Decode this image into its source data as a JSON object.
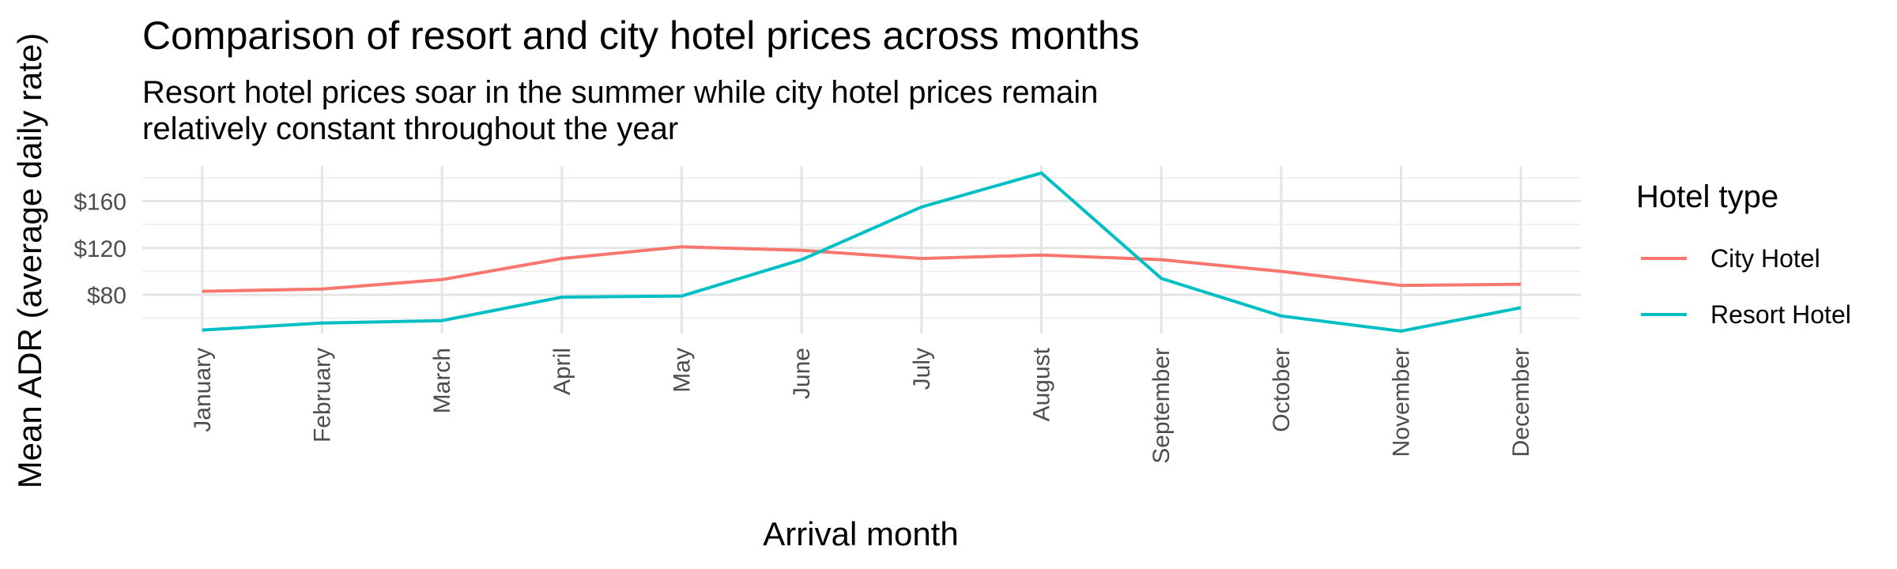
{
  "chart_data": {
    "type": "line",
    "title": "Comparison of resort and city hotel prices across months",
    "subtitle_lines": [
      "Resort hotel prices soar in the summer while city hotel prices remain",
      "relatively constant throughout the year"
    ],
    "xlabel": "Arrival month",
    "ylabel": "Mean ADR (average daily rate)",
    "categories": [
      "January",
      "February",
      "March",
      "April",
      "May",
      "June",
      "July",
      "August",
      "September",
      "October",
      "November",
      "December"
    ],
    "y_ticks": [
      80,
      120,
      160
    ],
    "y_tick_labels": [
      "$80",
      "$120",
      "$160"
    ],
    "ylim": [
      47,
      190
    ],
    "grid": true,
    "legend": {
      "title": "Hotel type",
      "position": "right"
    },
    "series": [
      {
        "name": "City Hotel",
        "color": "#F8766D",
        "values": [
          83,
          85,
          93,
          111,
          121,
          118,
          111,
          114,
          110,
          100,
          88,
          89
        ]
      },
      {
        "name": "Resort Hotel",
        "color": "#00BFC4",
        "values": [
          50,
          56,
          58,
          78,
          79,
          110,
          155,
          184,
          94,
          62,
          49,
          69
        ]
      }
    ]
  }
}
